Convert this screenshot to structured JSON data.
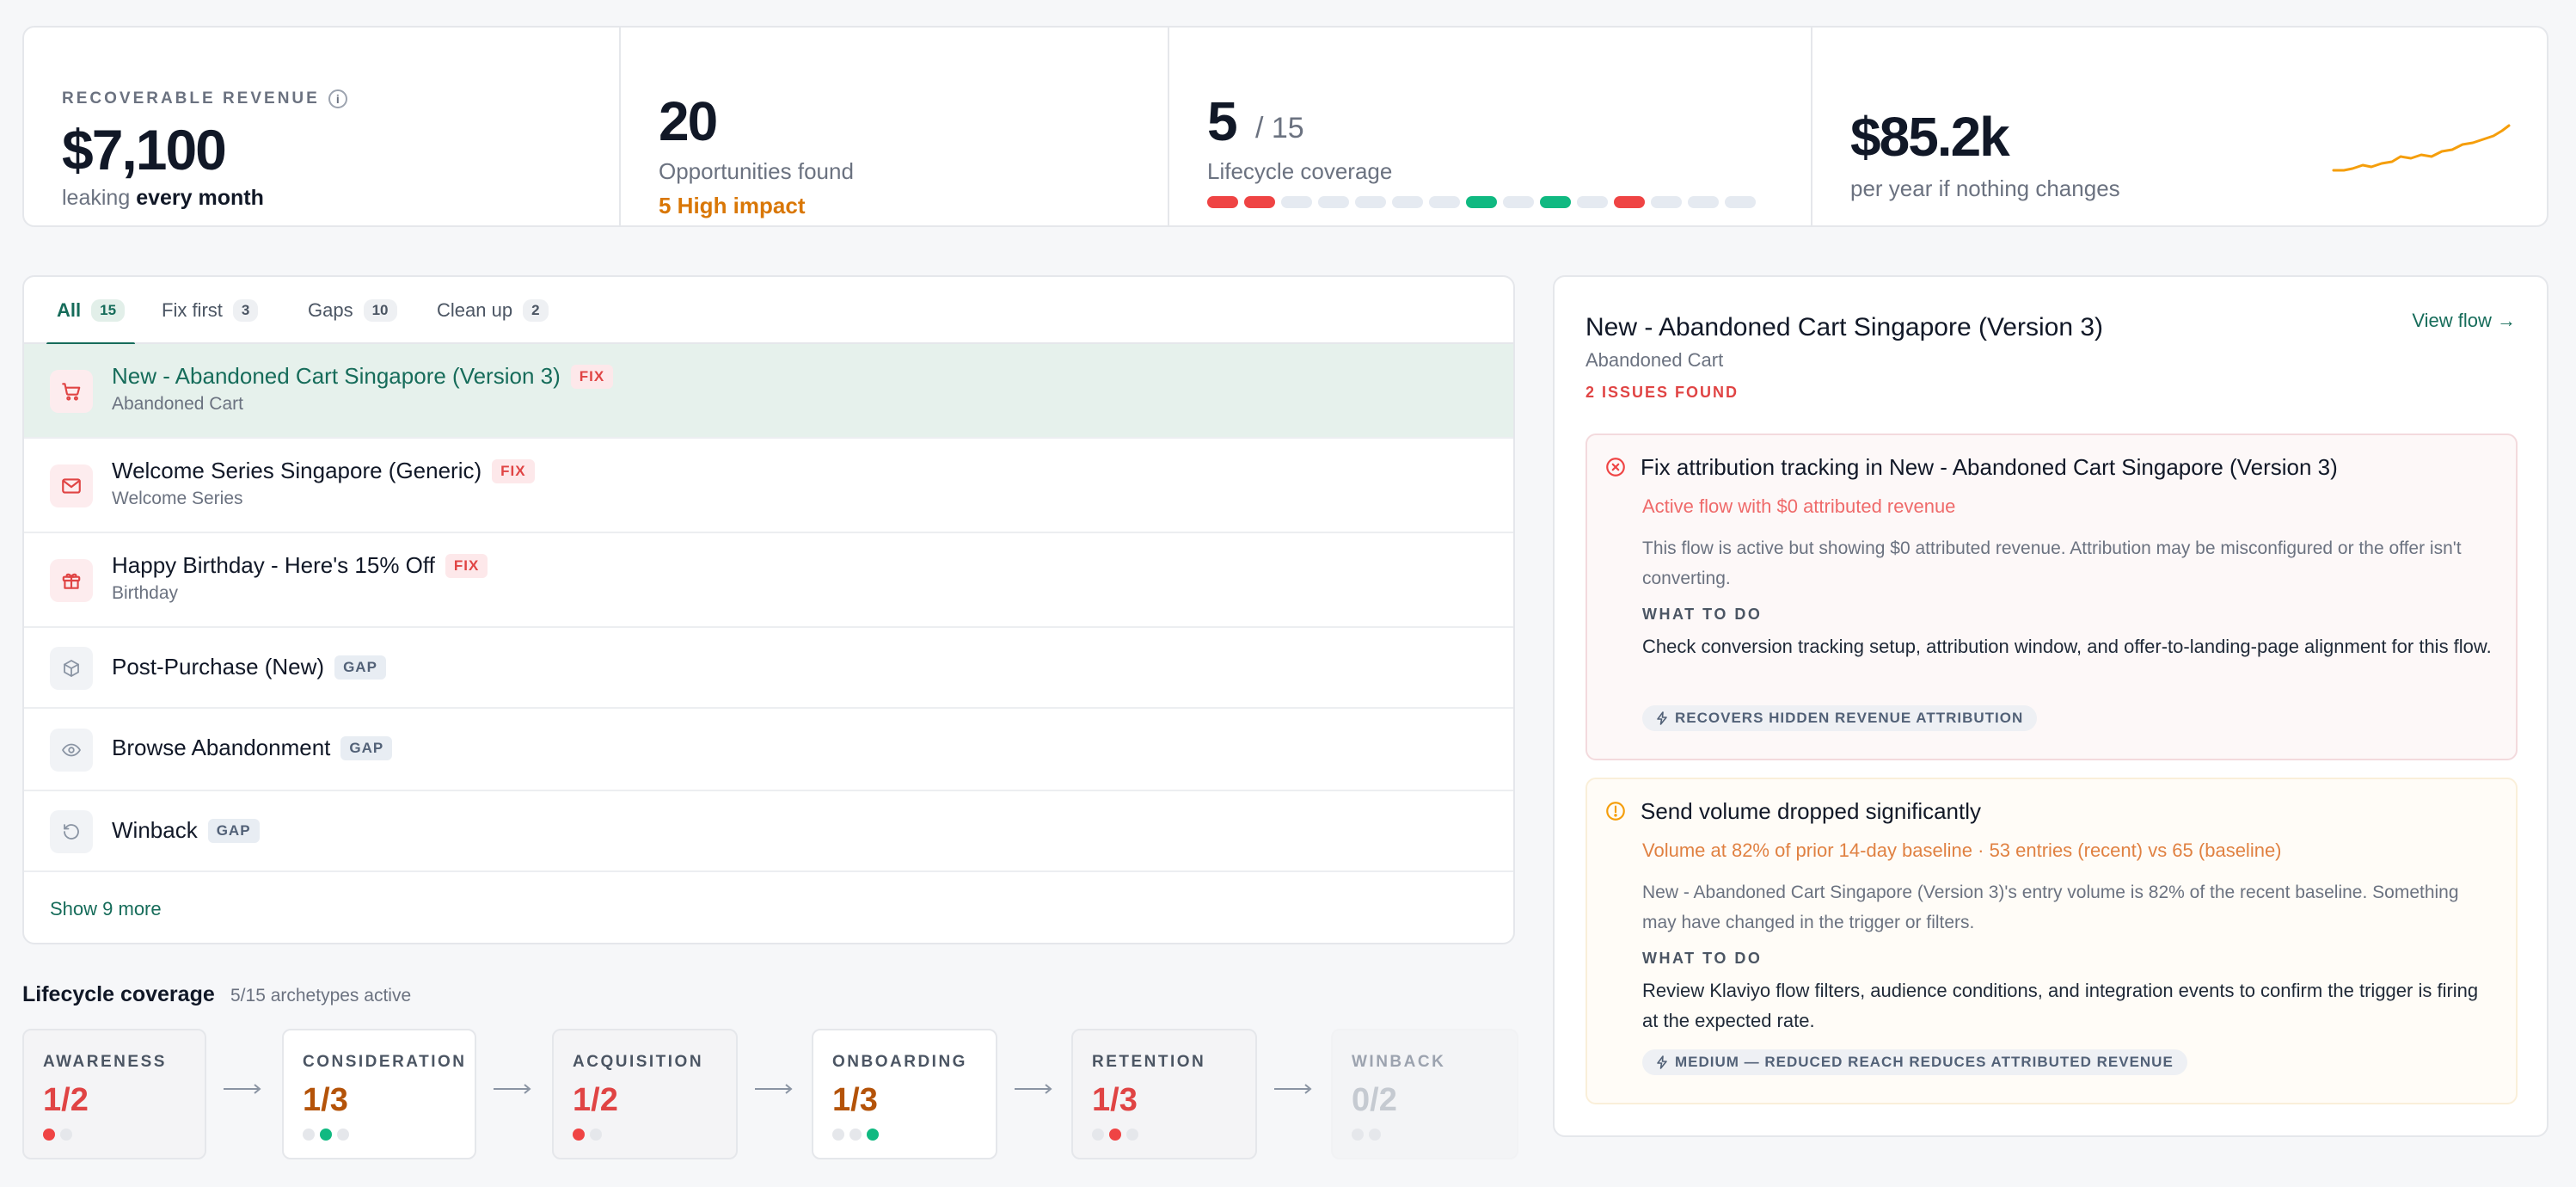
{
  "stats": {
    "recoverable_label": "RECOVERABLE REVENUE",
    "recoverable_value": "$7,100",
    "recoverable_sub_pre": "leaking",
    "recoverable_sub_bold": "every month",
    "opportunities_value": "20",
    "opportunities_label": "Opportunities found",
    "opportunities_high": "5 High impact",
    "coverage_value": "5",
    "coverage_total": "/ 15",
    "coverage_label": "Lifecycle coverage",
    "coverage_segments": [
      "red",
      "red",
      "empty",
      "empty",
      "empty",
      "empty",
      "empty",
      "green",
      "empty",
      "green",
      "empty",
      "red",
      "empty",
      "empty",
      "empty"
    ],
    "annual_value": "$85.2k",
    "annual_label": "per year if nothing changes"
  },
  "tabs": [
    {
      "label": "All",
      "count": "15",
      "active": true
    },
    {
      "label": "Fix first",
      "count": "3"
    },
    {
      "label": "Gaps",
      "count": "10"
    },
    {
      "label": "Clean up",
      "count": "2"
    }
  ],
  "flows": [
    {
      "title": "New - Abandoned Cart Singapore (Version 3)",
      "badge": "FIX",
      "subtitle": "Abandoned Cart",
      "icon": "cart-icon"
    },
    {
      "title": "Welcome Series Singapore (Generic)",
      "badge": "FIX",
      "subtitle": "Welcome Series",
      "icon": "mail-icon"
    },
    {
      "title": "Happy Birthday - Here's 15% Off",
      "badge": "FIX",
      "subtitle": "Birthday",
      "icon": "gift-icon"
    },
    {
      "title": "Post-Purchase (New)",
      "badge": "GAP",
      "icon": "box-icon"
    },
    {
      "title": "Browse Abandonment",
      "badge": "GAP",
      "icon": "eye-icon"
    },
    {
      "title": "Winback",
      "badge": "GAP",
      "icon": "refresh-icon"
    }
  ],
  "show_more": "Show 9 more",
  "lifecycle": {
    "title": "Lifecycle coverage",
    "subtitle": "5/15 archetypes active",
    "stages": [
      {
        "label": "AWARENESS",
        "value": "1/2",
        "dots": [
          "red",
          "empty"
        ]
      },
      {
        "label": "CONSIDERATION",
        "value": "1/3",
        "dots": [
          "empty",
          "green",
          "empty"
        ]
      },
      {
        "label": "ACQUISITION",
        "value": "1/2",
        "dots": [
          "red",
          "empty"
        ]
      },
      {
        "label": "ONBOARDING",
        "value": "1/3",
        "dots": [
          "empty",
          "empty",
          "green"
        ]
      },
      {
        "label": "RETENTION",
        "value": "1/3",
        "dots": [
          "empty",
          "red",
          "empty"
        ]
      },
      {
        "label": "WINBACK",
        "value": "0/2",
        "dots": [
          "empty",
          "empty"
        ]
      }
    ]
  },
  "detail": {
    "title": "New - Abandoned Cart Singapore (Version 3)",
    "subtitle": "Abandoned Cart",
    "issues_count": "2 ISSUES FOUND",
    "view_flow": "View flow →",
    "issues": [
      {
        "title": "Fix attribution tracking in New - Abandoned Cart Singapore (Version 3)",
        "meta": "Active flow with $0 attributed revenue",
        "description": "This flow is active but showing $0 attributed revenue. Attribution may be misconfigured or the offer isn't converting.",
        "todo_label": "WHAT TO DO",
        "todo": "Check conversion tracking setup, attribution window, and offer-to-landing-page alignment for this flow.",
        "pill": "RECOVERS HIDDEN REVENUE ATTRIBUTION"
      },
      {
        "title": "Send volume dropped significantly",
        "meta": "Volume at 82% of prior 14-day baseline · 53 entries (recent) vs 65 (baseline)",
        "description": "New - Abandoned Cart Singapore (Version 3)'s entry volume is 82% of the recent baseline. Something may have changed in the trigger or filters.",
        "todo_label": "WHAT TO DO",
        "todo": "Review Klaviyo flow filters, audience conditions, and integration events to confirm the trigger is firing at the expected rate.",
        "pill": "MEDIUM — REDUCED REACH REDUCES ATTRIBUTED REVENUE"
      }
    ]
  },
  "colors": {
    "accent": "#166c5a",
    "danger": "#ef4444",
    "warning": "#d97706",
    "success": "#10b981",
    "sparkline": "#f59e0b"
  }
}
